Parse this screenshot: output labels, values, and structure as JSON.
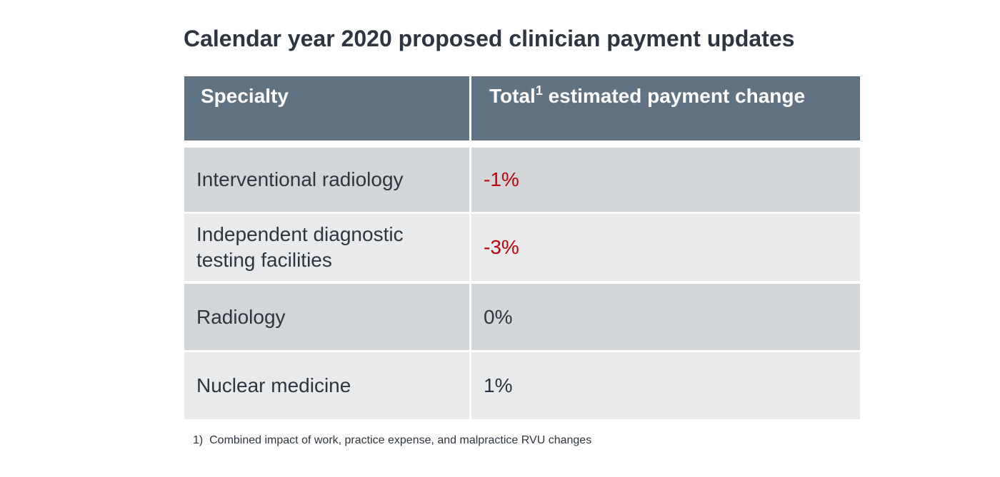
{
  "title": "Calendar year 2020 proposed clinician payment updates",
  "table": {
    "header": [
      "Specialty",
      {
        "text": "Total",
        "note": "1",
        "rest": "estimated payment change"
      }
    ],
    "rows": [
      [
        "Interventional radiology",
        "-1%"
      ],
      [
        "Independent diagnostic testing facilities",
        "-3%"
      ],
      [
        "Radiology",
        "0%"
      ],
      [
        "Nuclear medicine",
        "1%"
      ]
    ]
  },
  "footnote": {
    "marker": "1)",
    "text": "Combined impact of work, practice expense, and malpractice RVU changes"
  }
}
